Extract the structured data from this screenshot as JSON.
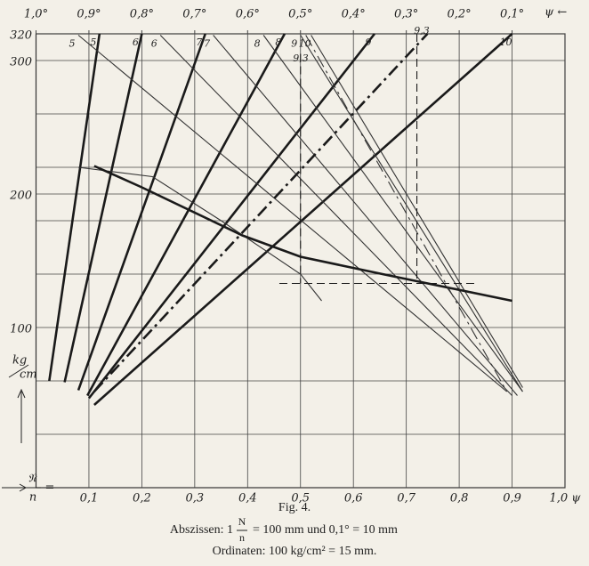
{
  "chart_data": {
    "type": "line",
    "xlim": [
      0,
      1.0
    ],
    "xticks": [
      {
        "value": 0.1,
        "label": "0,1"
      },
      {
        "value": 0.2,
        "label": "0,2"
      },
      {
        "value": 0.3,
        "label": "0,3"
      },
      {
        "value": 0.4,
        "label": "0,4"
      },
      {
        "value": 0.5,
        "label": "0,5"
      },
      {
        "value": 0.6,
        "label": "0,6"
      },
      {
        "value": 0.7,
        "label": "0,7"
      },
      {
        "value": 0.8,
        "label": "0,8"
      },
      {
        "value": 0.9,
        "label": "0,9"
      },
      {
        "value": 1.0,
        "label": "1,0 ψ"
      }
    ],
    "x2lim": [
      1.0,
      0
    ],
    "x2ticks": [
      {
        "value": 1.0,
        "label": "1,0°"
      },
      {
        "value": 0.9,
        "label": "0,9°"
      },
      {
        "value": 0.8,
        "label": "0,8°"
      },
      {
        "value": 0.7,
        "label": "0,7°"
      },
      {
        "value": 0.6,
        "label": "0,6°"
      },
      {
        "value": 0.5,
        "label": "0,5°"
      },
      {
        "value": 0.4,
        "label": "0,4°"
      },
      {
        "value": 0.3,
        "label": "0,3°"
      },
      {
        "value": 0.2,
        "label": "0,2°"
      },
      {
        "value": 0.1,
        "label": "0,1°"
      }
    ],
    "x2label": "ψ ←",
    "xlabel_num": "𝔑",
    "xlabel_den": "n",
    "xlabel_eq": "=",
    "ylabel_num": "kg",
    "ylabel_den": "cm",
    "ylim": [
      -20,
      320
    ],
    "yticks": [
      100,
      200,
      300,
      320
    ],
    "ygrid": [
      20,
      60,
      140,
      180,
      220,
      260
    ],
    "grid": true,
    "annotations": [
      "9,3",
      "9,3"
    ],
    "series": [
      {
        "name": "5",
        "color": "#1a1a1a",
        "width": "thick",
        "dash": "solid",
        "x": [
          0.025,
          0.12
        ],
        "y": [
          60,
          320
        ]
      },
      {
        "name": "6",
        "color": "#1a1a1a",
        "width": "thick",
        "dash": "solid",
        "x": [
          0.054,
          0.2
        ],
        "y": [
          59,
          320
        ]
      },
      {
        "name": "7",
        "color": "#1a1a1a",
        "width": "thick",
        "dash": "solid",
        "x": [
          0.08,
          0.32
        ],
        "y": [
          53,
          320
        ]
      },
      {
        "name": "8",
        "color": "#1a1a1a",
        "width": "thick",
        "dash": "solid",
        "x": [
          0.097,
          0.47
        ],
        "y": [
          49,
          320
        ]
      },
      {
        "name": "9",
        "color": "#1a1a1a",
        "width": "thick",
        "dash": "solid",
        "x": [
          0.1,
          0.64
        ],
        "y": [
          47,
          320
        ]
      },
      {
        "name": "10",
        "color": "#1a1a1a",
        "width": "thick",
        "dash": "solid",
        "x": [
          0.11,
          0.9
        ],
        "y": [
          42,
          320
        ]
      },
      {
        "name": "5",
        "color": "#333333",
        "width": "thin",
        "dash": "solid",
        "x": [
          0.08,
          0.89
        ],
        "y": [
          319,
          52
        ]
      },
      {
        "name": "6",
        "color": "#333333",
        "width": "thin",
        "dash": "solid",
        "x": [
          0.235,
          0.9
        ],
        "y": [
          319,
          49
        ]
      },
      {
        "name": "7",
        "color": "#333333",
        "width": "thin",
        "dash": "solid",
        "x": [
          0.335,
          0.91
        ],
        "y": [
          319,
          49
        ]
      },
      {
        "name": "8",
        "color": "#333333",
        "width": "thin",
        "dash": "solid",
        "x": [
          0.43,
          0.92
        ],
        "y": [
          319,
          52
        ]
      },
      {
        "name": "9",
        "color": "#333333",
        "width": "thin",
        "dash": "solid",
        "x": [
          0.5,
          0.92
        ],
        "y": [
          319,
          52
        ]
      },
      {
        "name": "10",
        "color": "#333333",
        "width": "thin",
        "dash": "solid",
        "x": [
          0.52,
          0.92
        ],
        "y": [
          319,
          55
        ]
      },
      {
        "color": "#333333",
        "width": "thin",
        "dash": "solid",
        "x": [
          0.08,
          0.22,
          0.35,
          0.5,
          0.54
        ],
        "y": [
          220,
          213,
          180,
          140,
          120
        ]
      },
      {
        "color": "#1a1a1a",
        "width": "thick",
        "dash": "solid",
        "x": [
          0.11,
          0.2,
          0.39,
          0.5,
          0.655,
          0.9
        ],
        "y": [
          221,
          205,
          169,
          153,
          140,
          120
        ]
      },
      {
        "color": "#1a1a1a",
        "width": "thick",
        "dash": "dashdot",
        "x": [
          0.11,
          0.74
        ],
        "y": [
          52,
          320
        ]
      },
      {
        "color": "#333333",
        "width": "thin",
        "dash": "dashdot",
        "x": [
          0.51,
          0.89
        ],
        "y": [
          319,
          52
        ]
      },
      {
        "color": "#1a1a1a",
        "width": "thin",
        "dash": "dashed",
        "x": [
          0.5,
          0.5
        ],
        "y": [
          305,
          133
        ]
      },
      {
        "color": "#1a1a1a",
        "width": "thin",
        "dash": "dashed",
        "x": [
          0.72,
          0.72
        ],
        "y": [
          320,
          133
        ]
      },
      {
        "color": "#1a1a1a",
        "width": "thin",
        "dash": "dashed",
        "x": [
          0.46,
          0.83
        ],
        "y": [
          133,
          133
        ]
      }
    ]
  },
  "caption": {
    "figure": "Fig. 4.",
    "abscissa_pre": "Abszissen: 1",
    "abscissa_num": "N",
    "abscissa_den": "n",
    "abscissa_post": "= 100 mm und 0,1° = 10 mm",
    "ordinate": "Ordinaten: 100 kg/cm² = 15 mm."
  }
}
